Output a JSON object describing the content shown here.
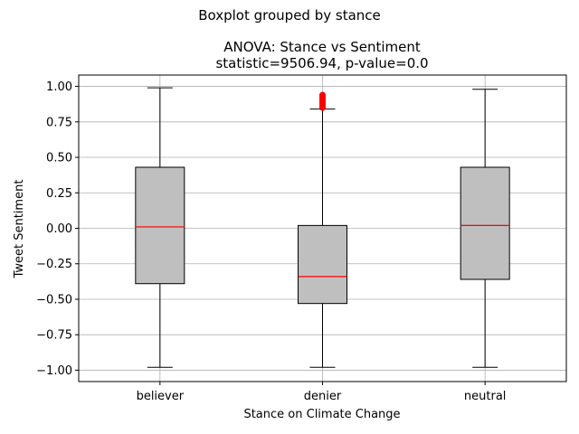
{
  "chart_data": {
    "type": "boxplot",
    "suptitle": "Boxplot grouped by stance",
    "title_line1": "ANOVA: Stance vs Sentiment",
    "title_line2": "statistic=9506.94, p-value=0.0",
    "xlabel": "Stance on Climate Change",
    "ylabel": "Tweet Sentiment",
    "ylim": [
      -1.08,
      1.08
    ],
    "yticks": [
      -1.0,
      -0.75,
      -0.5,
      -0.25,
      0.0,
      0.25,
      0.5,
      0.75,
      1.0
    ],
    "ytick_labels": [
      "−1.00",
      "−0.75",
      "−0.50",
      "−0.25",
      "0.00",
      "0.25",
      "0.50",
      "0.75",
      "1.00"
    ],
    "grid": true,
    "categories": [
      "believer",
      "denier",
      "neutral"
    ],
    "boxes": [
      {
        "category": "believer",
        "whisker_low": -0.98,
        "q1": -0.39,
        "median": 0.01,
        "q3": 0.43,
        "whisker_high": 0.99,
        "outliers": []
      },
      {
        "category": "denier",
        "whisker_low": -0.98,
        "q1": -0.53,
        "median": -0.34,
        "q3": 0.02,
        "whisker_high": 0.84,
        "outliers": [
          0.85,
          0.86,
          0.87,
          0.88,
          0.89,
          0.9,
          0.91,
          0.92,
          0.93,
          0.94
        ]
      },
      {
        "category": "neutral",
        "whisker_low": -0.98,
        "q1": -0.36,
        "median": 0.02,
        "q3": 0.43,
        "whisker_high": 0.98,
        "outliers": []
      }
    ],
    "colors": {
      "box_fill": "#bfbfbf",
      "median": "#ff0000",
      "outlier": "#ff0000",
      "grid": "#b0b0b0"
    }
  }
}
